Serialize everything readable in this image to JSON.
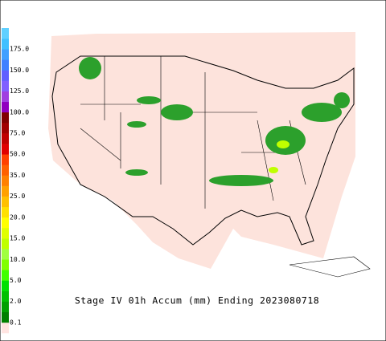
{
  "title": "Stage IV 01h Accum (mm) Ending 2023080718",
  "legend": {
    "labels": [
      "0.1",
      "2.0",
      "5.0",
      "10.0",
      "15.0",
      "20.0",
      "25.0",
      "35.0",
      "50.0",
      "75.0",
      "100.0",
      "125.0",
      "150.0",
      "175.0"
    ],
    "colors": [
      "#ffe4e1",
      "#007f00",
      "#00a000",
      "#00c000",
      "#00e000",
      "#40ff00",
      "#80ff00",
      "#a0ff40",
      "#c0ff00",
      "#e0ff00",
      "#ffff00",
      "#ffe000",
      "#ffc000",
      "#ffa000",
      "#ff8000",
      "#ff6000",
      "#ff4000",
      "#e00000",
      "#c00000",
      "#a00000",
      "#800000",
      "#9000c0",
      "#a040e0",
      "#8060ff",
      "#6060ff",
      "#4080ff",
      "#40a0ff",
      "#40c0ff",
      "#60d0ff"
    ]
  }
}
